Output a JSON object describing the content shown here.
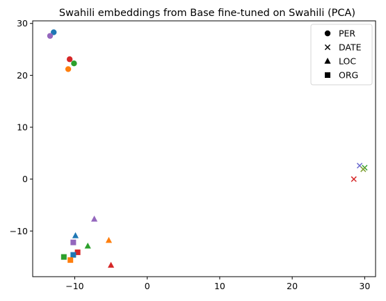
{
  "chart_data": {
    "type": "scatter",
    "title": "Swahili embeddings from Base fine-tuned on Swahili (PCA)",
    "xlabel": "",
    "ylabel": "",
    "xlim": [
      -15.8,
      31.5
    ],
    "ylim": [
      -18.8,
      30.5
    ],
    "xticks": [
      -10,
      0,
      10,
      20,
      30
    ],
    "yticks": [
      -10,
      0,
      10,
      20,
      30
    ],
    "grid": false,
    "legend_position": "top-right",
    "legend": [
      {
        "label": "PER",
        "marker": "circle"
      },
      {
        "label": "DATE",
        "marker": "x"
      },
      {
        "label": "LOC",
        "marker": "triangle"
      },
      {
        "label": "ORG",
        "marker": "square"
      }
    ],
    "colors": {
      "blue": "#1f77b4",
      "orange": "#ff7f0e",
      "green": "#2ca02c",
      "red": "#d62728",
      "purple": "#9467bd",
      "slate": "#6b6bcf",
      "olive": "#7f9f2f"
    },
    "points": [
      {
        "x": -12.9,
        "y": 28.3,
        "marker": "circle",
        "color": "blue"
      },
      {
        "x": -13.4,
        "y": 27.6,
        "marker": "circle",
        "color": "purple"
      },
      {
        "x": -10.7,
        "y": 23.1,
        "marker": "circle",
        "color": "red"
      },
      {
        "x": -10.1,
        "y": 22.3,
        "marker": "circle",
        "color": "green"
      },
      {
        "x": -10.9,
        "y": 21.2,
        "marker": "circle",
        "color": "orange"
      },
      {
        "x": 29.3,
        "y": 2.6,
        "marker": "x",
        "color": "slate"
      },
      {
        "x": 30.0,
        "y": 2.2,
        "marker": "x",
        "color": "green"
      },
      {
        "x": 29.8,
        "y": 1.9,
        "marker": "x",
        "color": "olive"
      },
      {
        "x": 28.5,
        "y": 0.0,
        "marker": "x",
        "color": "red"
      },
      {
        "x": -7.3,
        "y": -7.7,
        "marker": "triangle",
        "color": "purple"
      },
      {
        "x": -9.9,
        "y": -10.9,
        "marker": "triangle",
        "color": "blue"
      },
      {
        "x": -5.3,
        "y": -11.8,
        "marker": "triangle",
        "color": "orange"
      },
      {
        "x": -8.2,
        "y": -12.9,
        "marker": "triangle",
        "color": "green"
      },
      {
        "x": -5.0,
        "y": -16.6,
        "marker": "triangle",
        "color": "red"
      },
      {
        "x": -10.2,
        "y": -12.2,
        "marker": "square",
        "color": "purple"
      },
      {
        "x": -9.6,
        "y": -14.1,
        "marker": "square",
        "color": "red"
      },
      {
        "x": -10.2,
        "y": -14.6,
        "marker": "square",
        "color": "blue"
      },
      {
        "x": -11.5,
        "y": -15.0,
        "marker": "square",
        "color": "green"
      },
      {
        "x": -10.6,
        "y": -15.6,
        "marker": "square",
        "color": "orange"
      }
    ]
  }
}
